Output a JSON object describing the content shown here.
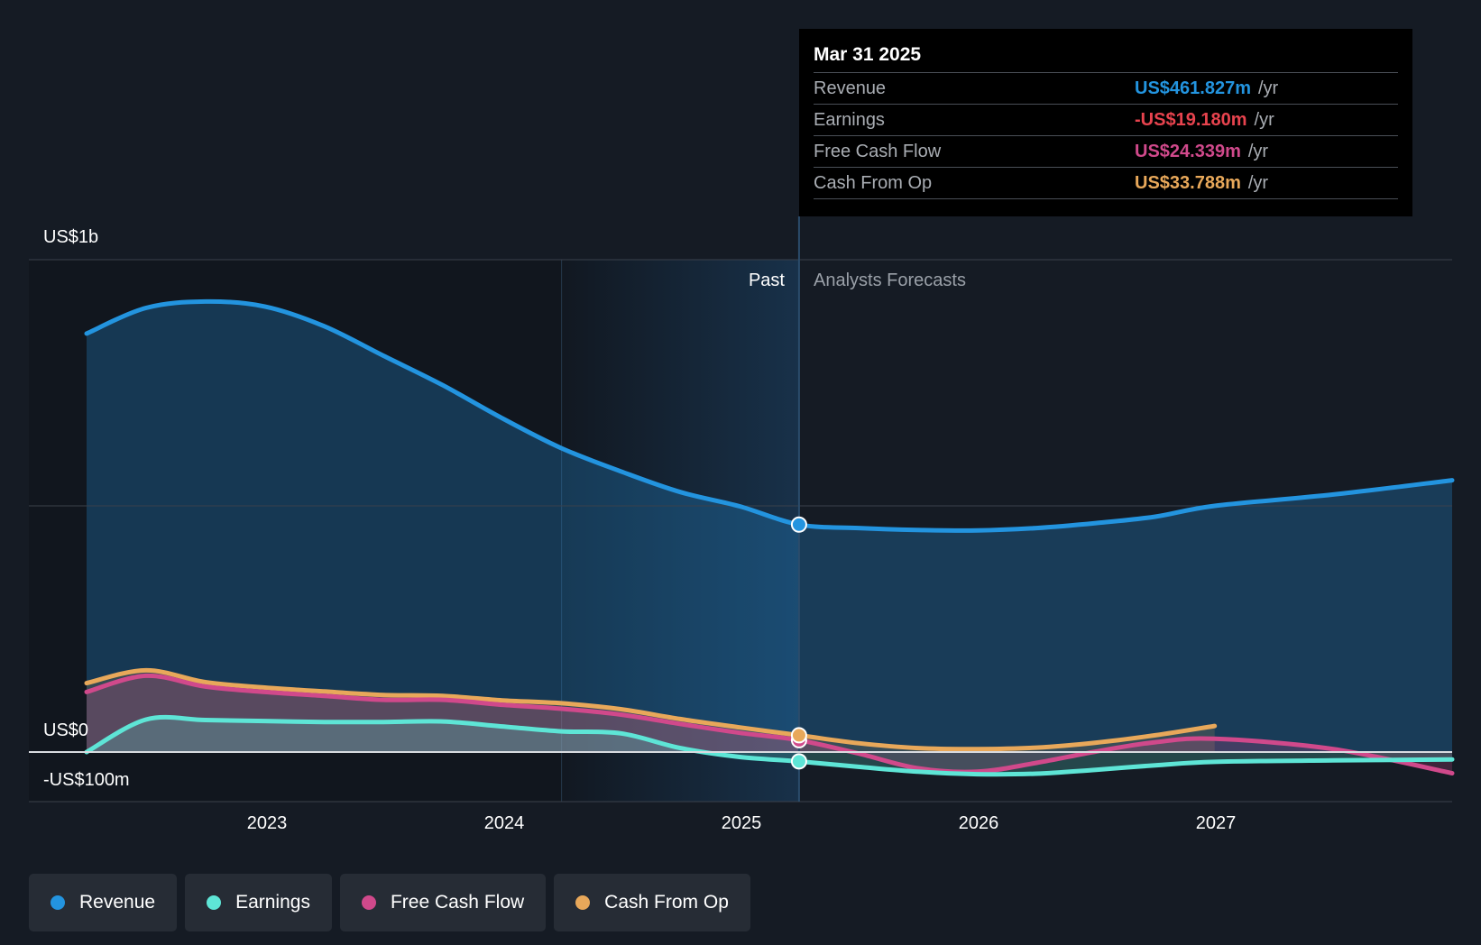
{
  "chart_data": {
    "type": "line",
    "y_axis_labels": [
      "US$1b",
      "US$0",
      "-US$100m"
    ],
    "ylim": [
      -200,
      1000
    ],
    "x_ticks": [
      "2023",
      "2024",
      "2025",
      "2026",
      "2027"
    ],
    "region_labels": {
      "past": "Past",
      "forecast": "Analysts Forecasts"
    },
    "grid": true,
    "legend_position": "bottom",
    "series": [
      {
        "name": "Revenue",
        "color": "#2394df",
        "x": [
          2022.25,
          2022.5,
          2022.75,
          2023.0,
          2023.25,
          2023.5,
          2023.75,
          2024.0,
          2024.25,
          2024.5,
          2024.75,
          2025.0,
          2025.25,
          2025.5,
          2025.75,
          2026.0,
          2026.25,
          2026.5,
          2026.75,
          2027.0,
          2027.5,
          2028.0
        ],
        "values": [
          850,
          902,
          915,
          905,
          865,
          805,
          745,
          678,
          617,
          570,
          528,
          499,
          462,
          455,
          451,
          450,
          455,
          465,
          478,
          500,
          523,
          552
        ]
      },
      {
        "name": "Earnings",
        "color": "#5ee5d6",
        "x": [
          2022.25,
          2022.5,
          2022.75,
          2023.0,
          2023.25,
          2023.5,
          2023.75,
          2024.0,
          2024.25,
          2024.5,
          2024.75,
          2025.0,
          2025.25,
          2025.5,
          2025.75,
          2026.0,
          2026.25,
          2026.5,
          2026.75,
          2027.0,
          2027.5,
          2028.0
        ],
        "values": [
          0,
          66,
          65,
          63,
          61,
          61,
          62,
          52,
          42,
          38,
          8,
          -10,
          -19,
          -30,
          -40,
          -45,
          -44,
          -36,
          -27,
          -20,
          -17,
          -15
        ]
      },
      {
        "name": "Free Cash Flow",
        "color": "#d0498b",
        "x": [
          2022.25,
          2022.5,
          2022.75,
          2023.0,
          2023.25,
          2023.5,
          2023.75,
          2024.0,
          2024.25,
          2024.5,
          2024.75,
          2025.0,
          2025.25,
          2025.5,
          2025.75,
          2026.0,
          2026.25,
          2026.5,
          2026.75,
          2027.0,
          2027.5,
          2028.0
        ],
        "values": [
          122,
          155,
          133,
          122,
          114,
          106,
          106,
          96,
          88,
          76,
          57,
          39,
          24,
          -3,
          -33,
          -40,
          -22,
          1,
          20,
          27,
          6,
          -43
        ]
      },
      {
        "name": "Cash From Op",
        "color": "#e8a85a",
        "x": [
          2022.25,
          2022.5,
          2022.75,
          2023.0,
          2023.25,
          2023.5,
          2023.75,
          2024.0,
          2024.25,
          2024.5,
          2024.75,
          2025.0,
          2025.25,
          2025.5,
          2025.75,
          2026.0,
          2026.25,
          2026.5,
          2026.75,
          2027.0
        ],
        "values": [
          140,
          166,
          142,
          131,
          123,
          116,
          114,
          105,
          99,
          87,
          67,
          50,
          34,
          18,
          8,
          6,
          9,
          19,
          34,
          53
        ]
      }
    ]
  },
  "tooltip": {
    "date": "Mar 31 2025",
    "rows": [
      {
        "name": "Revenue",
        "value": "US$461.827m",
        "unit": "/yr",
        "color": "#2394df"
      },
      {
        "name": "Earnings",
        "value": "-US$19.180m",
        "unit": "/yr",
        "color": "#e7434e"
      },
      {
        "name": "Free Cash Flow",
        "value": "US$24.339m",
        "unit": "/yr",
        "color": "#d0498b"
      },
      {
        "name": "Cash From Op",
        "value": "US$33.788m",
        "unit": "/yr",
        "color": "#e8a85a"
      }
    ]
  },
  "legend": {
    "items": [
      {
        "label": "Revenue",
        "color": "#2394df"
      },
      {
        "label": "Earnings",
        "color": "#5ee5d6"
      },
      {
        "label": "Free Cash Flow",
        "color": "#d0498b"
      },
      {
        "label": "Cash From Op",
        "color": "#e8a85a"
      }
    ]
  }
}
